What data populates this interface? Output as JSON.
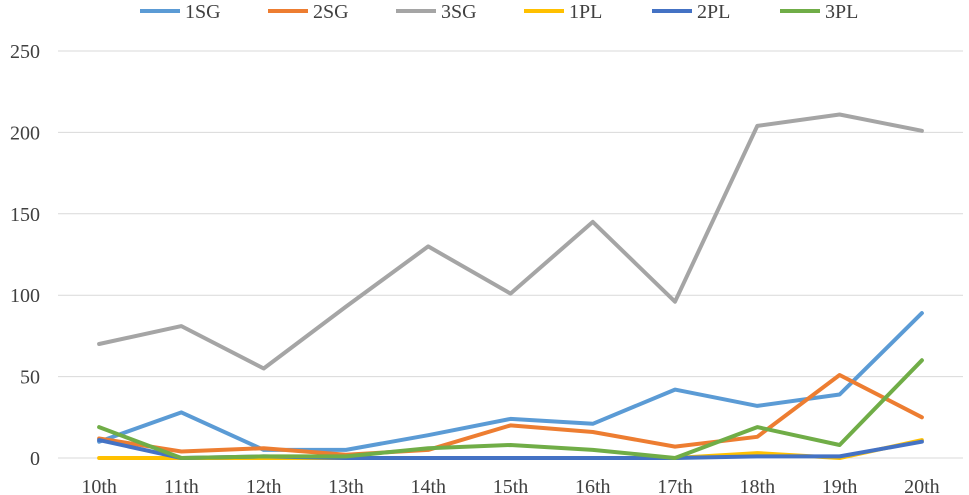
{
  "chart_data": {
    "type": "line",
    "title": "",
    "xlabel": "",
    "ylabel": "",
    "categories": [
      "10th",
      "11th",
      "12th",
      "13th",
      "14th",
      "15th",
      "16th",
      "17th",
      "18th",
      "19th",
      "20th"
    ],
    "ylim": [
      0,
      250
    ],
    "yticks": [
      "0",
      "50",
      "100",
      "150",
      "200",
      "250"
    ],
    "grid": true,
    "legend_position": "top",
    "series": [
      {
        "name": "1SG",
        "color": "#5b9bd5",
        "values": [
          10,
          28,
          5,
          5,
          14,
          24,
          21,
          42,
          32,
          39,
          89
        ]
      },
      {
        "name": "2SG",
        "color": "#ed7d31",
        "values": [
          12,
          4,
          6,
          2,
          5,
          20,
          16,
          7,
          13,
          51,
          25
        ]
      },
      {
        "name": "3SG",
        "color": "#a5a5a5",
        "values": [
          70,
          81,
          55,
          93,
          130,
          101,
          145,
          96,
          204,
          211,
          201
        ]
      },
      {
        "name": "1PL",
        "color": "#ffc000",
        "values": [
          0,
          0,
          0,
          0,
          0,
          0,
          0,
          0,
          3,
          0,
          11
        ]
      },
      {
        "name": "2PL",
        "color": "#4472c4",
        "values": [
          11,
          0,
          1,
          0,
          0,
          0,
          0,
          0,
          1,
          1,
          10
        ]
      },
      {
        "name": "3PL",
        "color": "#70ad47",
        "values": [
          19,
          0,
          1,
          1,
          6,
          8,
          5,
          0,
          19,
          8,
          60
        ]
      }
    ]
  }
}
